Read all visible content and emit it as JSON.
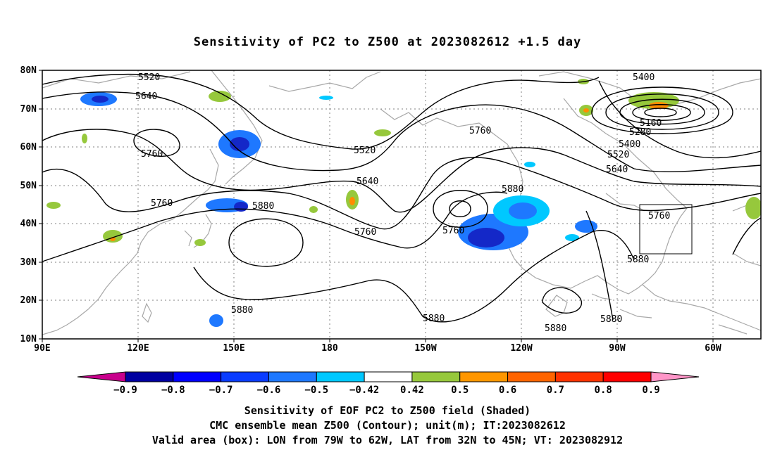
{
  "title": "Sensitivity of PC2 to Z500 at 2023082612 +1.5 day",
  "map": {
    "lat_labels": [
      "80N",
      "70N",
      "60N",
      "50N",
      "40N",
      "30N",
      "20N",
      "10N"
    ],
    "lon_labels": [
      "90E",
      "120E",
      "150E",
      "180",
      "150W",
      "120W",
      "90W",
      "60W"
    ],
    "contour_labels": [
      "5520",
      "5640",
      "5760",
      "5520",
      "5640",
      "5760",
      "5880",
      "5880",
      "5760",
      "5760",
      "5880",
      "5880",
      "5760",
      "5400",
      "5160",
      "5280",
      "5400",
      "5520",
      "5640",
      "5760",
      "5880",
      "5880",
      "5880"
    ],
    "box_label": "Valid area",
    "colors": {
      "coast": "#a0a0a0",
      "contour": "#000000",
      "blue_dark": "#1428c8",
      "blue_mid": "#1e78ff",
      "blue_light": "#00c8ff",
      "green": "#96c83c",
      "orange": "#ff8c00"
    }
  },
  "colorbar": {
    "labels": [
      "−0.9",
      "−0.8",
      "−0.7",
      "−0.6",
      "−0.5",
      "−0.42",
      "0.42",
      "0.5",
      "0.6",
      "0.7",
      "0.8",
      "0.9"
    ],
    "colors": [
      "#c8008c",
      "#0000a0",
      "#0000ff",
      "#0a3cff",
      "#1e78ff",
      "#00c8ff",
      "#ffffff",
      "#96c83c",
      "#ff9600",
      "#ff6400",
      "#ff3200",
      "#ff0000",
      "#ff96c8"
    ]
  },
  "caption": {
    "line1": "Sensitivity of EOF PC2 to Z500 field (Shaded)",
    "line2": "CMC ensemble mean Z500 (Contour); unit(m); IT:2023082612",
    "line3": "Valid area (box): LON from 79W to 62W, LAT from 32N to 45N; VT: 2023082912"
  }
}
